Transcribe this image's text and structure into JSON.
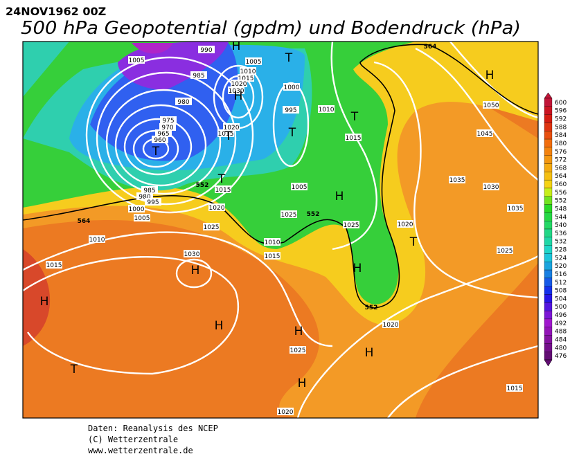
{
  "header": {
    "date": "24NOV1962 00Z",
    "title": "500 hPa Geopotential (gpdm) und Bodendruck (hPa)"
  },
  "legend": {
    "values": [
      600,
      596,
      592,
      588,
      584,
      580,
      576,
      572,
      568,
      564,
      560,
      556,
      552,
      548,
      544,
      540,
      536,
      532,
      528,
      524,
      520,
      516,
      512,
      508,
      504,
      500,
      496,
      492,
      488,
      484,
      480,
      476
    ]
  },
  "isobar_labels": [
    "1005",
    "990",
    "1005",
    "1010",
    "1015",
    "1020",
    "1030",
    "985",
    "980",
    "975",
    "970",
    "965",
    "960",
    "1000",
    "995",
    "1010",
    "1020",
    "1015",
    "1015",
    "1005",
    "1015",
    "985",
    "980",
    "995",
    "1000",
    "1005",
    "1020",
    "1010",
    "1015",
    "1025",
    "1030",
    "1025",
    "1025",
    "1020",
    "1010",
    "1015",
    "1050",
    "1045",
    "1035",
    "1030",
    "1025",
    "1020",
    "1025",
    "1015",
    "1020",
    "1035"
  ],
  "geopotential_labels": [
    "552",
    "564",
    "552",
    "552",
    "564"
  ],
  "pressure_centers": [
    "H",
    "T",
    "H",
    "T",
    "T",
    "T",
    "T",
    "H",
    "T",
    "H",
    "H",
    "T",
    "H",
    "H",
    "H",
    "H",
    "H",
    "T",
    "H"
  ],
  "footer": [
    "Daten: Reanalysis des NCEP",
    "(C) Wetterzentrale",
    "www.wetterzentrale.de"
  ]
}
